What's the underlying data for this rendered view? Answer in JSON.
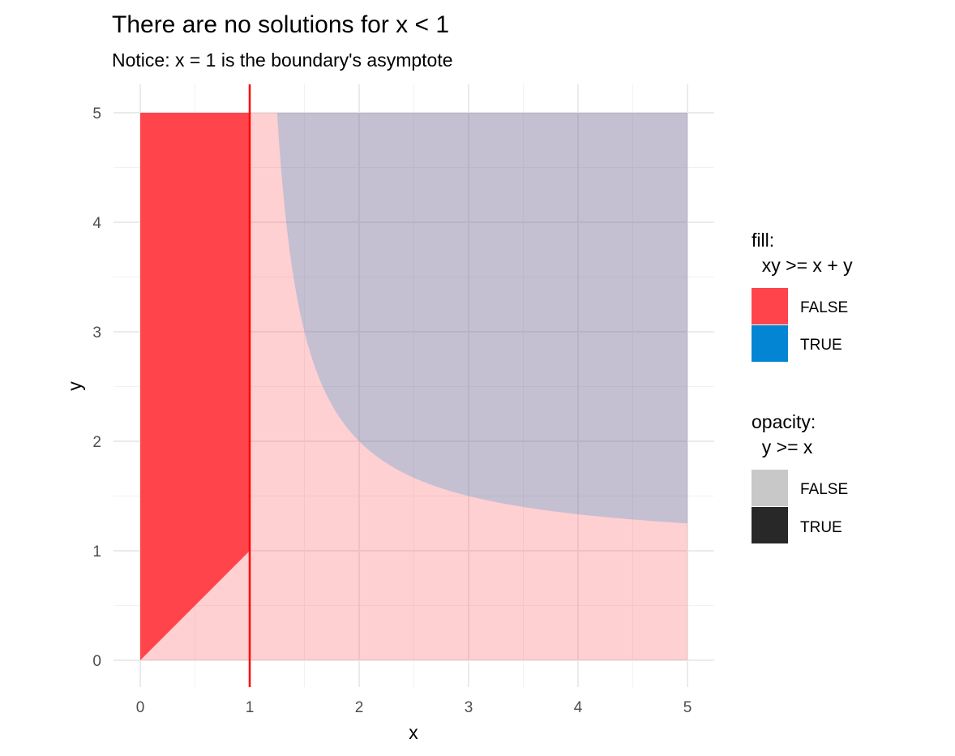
{
  "chart_data": {
    "type": "area",
    "title": "There are no solutions for x < 1",
    "subtitle": "Notice: x = 1 is the boundary's asymptote",
    "xlabel": "x",
    "ylabel": "y",
    "xlim": [
      0,
      5
    ],
    "ylim": [
      0,
      5
    ],
    "x_ticks": [
      "0",
      "1",
      "2",
      "3",
      "4",
      "5"
    ],
    "y_ticks": [
      "0",
      "1",
      "2",
      "3",
      "4",
      "5"
    ],
    "grid": true,
    "legend_position": "right",
    "boundary_curve": "y = x / (x - 1)",
    "vertical_line": {
      "x": 1,
      "color": "#ff0000"
    },
    "regions": [
      {
        "fill": "FALSE",
        "opacity": "TRUE",
        "description": "x < 1, y >= x",
        "color": "#ff444c",
        "alpha": 1.0
      },
      {
        "fill": "FALSE",
        "opacity": "FALSE",
        "description": "y < x or y < x/(x-1)",
        "color": "#ff444c",
        "alpha": 0.25
      },
      {
        "fill": "TRUE",
        "opacity": "FALSE",
        "description": "y >= x/(x-1), x > 1",
        "color": "#0385d3",
        "alpha": 0.23
      }
    ],
    "legends": [
      {
        "title_line1": "fill:",
        "title_line2": "  xy >= x + y",
        "entries": [
          {
            "label": "FALSE",
            "color": "#ff444c"
          },
          {
            "label": "TRUE",
            "color": "#0385d3"
          }
        ]
      },
      {
        "title_line1": "opacity:",
        "title_line2": "  y >= x",
        "entries": [
          {
            "label": "FALSE",
            "color": "#c8c8c8"
          },
          {
            "label": "TRUE",
            "color": "#282828"
          }
        ]
      }
    ]
  }
}
